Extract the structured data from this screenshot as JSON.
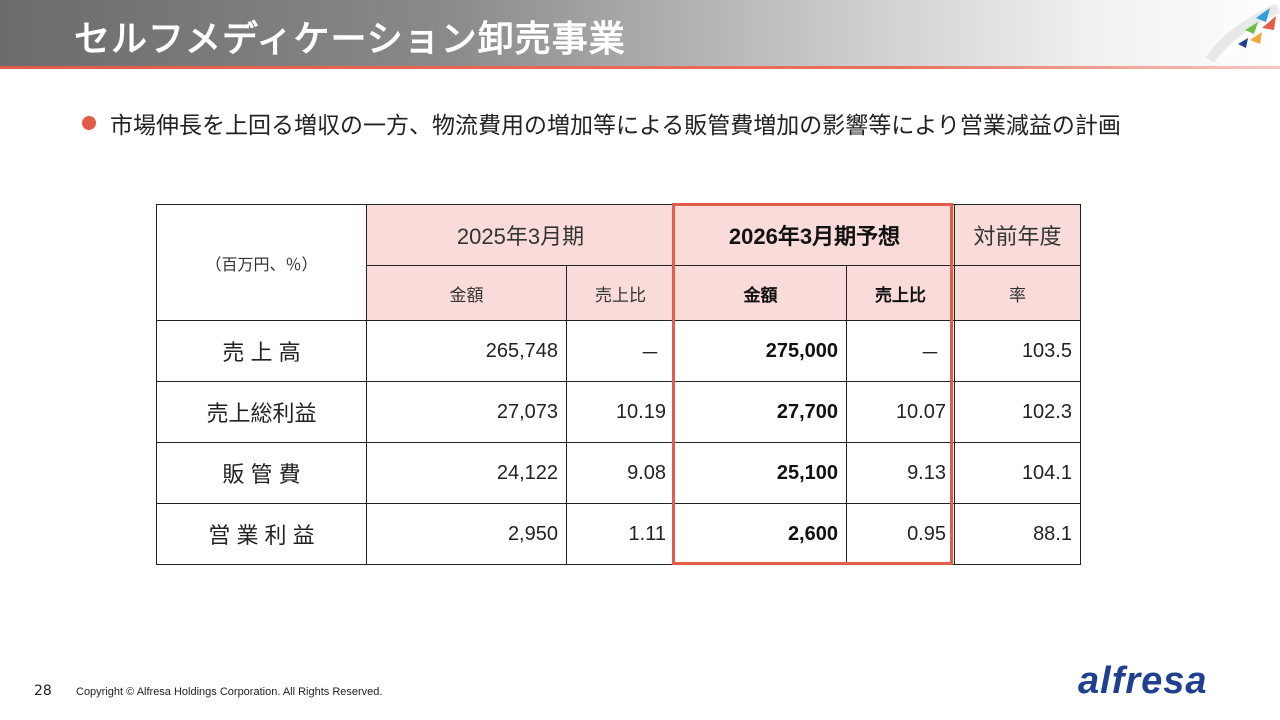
{
  "page": {
    "title": "セルフメディケーション卸売事業",
    "bullet": "市場伸長を上回る増収の一方、物流費用の増加等による販管費増加の影響等により営業減益の計画",
    "page_number": "28",
    "copyright": "Copyright © Alfresa Holdings Corporation. All Rights Reserved.",
    "logo_text": "alfresa",
    "accent_color": "#e25c48",
    "brand_color": "#1f3f8f"
  },
  "table": {
    "unit_label": "（百万円、％）",
    "period_prev": "2025年3月期",
    "period_plan": "2026年3月期予想",
    "yoy_header_1": "対前年度",
    "yoy_header_2": "率",
    "col_amount": "金額",
    "col_ratio": "売上比",
    "rows": [
      {
        "label": "売 上 高",
        "prev_amount": "265,748",
        "prev_ratio": "－",
        "plan_amount": "275,000",
        "plan_ratio": "－",
        "yoy": "103.5"
      },
      {
        "label": "売上総利益",
        "prev_amount": "27,073",
        "prev_ratio": "10.19",
        "plan_amount": "27,700",
        "plan_ratio": "10.07",
        "yoy": "102.3"
      },
      {
        "label": "販 管 費",
        "prev_amount": "24,122",
        "prev_ratio": "9.08",
        "plan_amount": "25,100",
        "plan_ratio": "9.13",
        "yoy": "104.1"
      },
      {
        "label": "営 業 利 益",
        "prev_amount": "2,950",
        "prev_ratio": "1.11",
        "plan_amount": "2,600",
        "plan_ratio": "0.95",
        "yoy": "88.1"
      }
    ]
  }
}
